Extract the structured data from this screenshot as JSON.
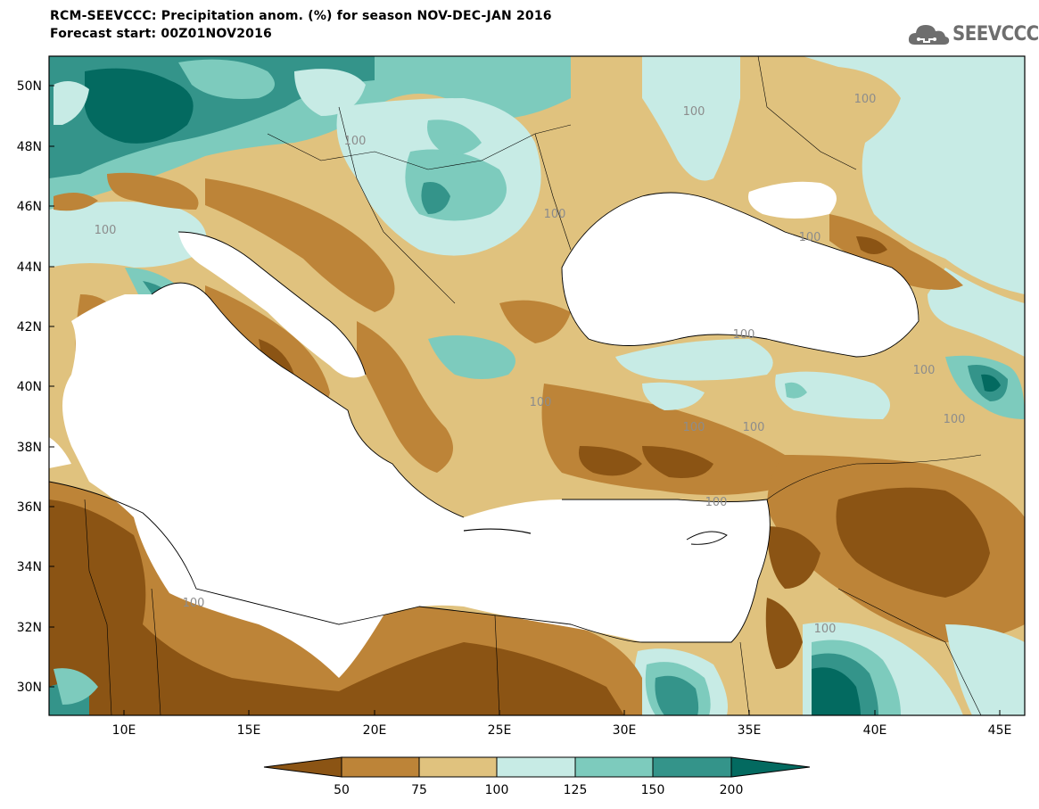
{
  "header": {
    "title_line1": "RCM-SEEVCCC: Precipitation anom. (%) for season NOV-DEC-JAN 2016",
    "title_line2": "Forecast start: 00Z01NOV2016",
    "logo_text": "SEEVCCC"
  },
  "map": {
    "lon_range": [
      7,
      46
    ],
    "lat_range": [
      29,
      51
    ],
    "lat_labels": [
      "50N",
      "48N",
      "46N",
      "44N",
      "42N",
      "40N",
      "38N",
      "36N",
      "34N",
      "32N",
      "30N"
    ],
    "lon_labels": [
      "10E",
      "15E",
      "20E",
      "25E",
      "30E",
      "35E",
      "40E",
      "45E"
    ],
    "contour_labels": [
      "100",
      "100",
      "100",
      "100",
      "100",
      "100",
      "100",
      "100",
      "100",
      "100",
      "100",
      "100",
      "100",
      "100",
      "100"
    ]
  },
  "colorbar": {
    "boundaries": [
      "50",
      "75",
      "100",
      "125",
      "150",
      "200"
    ],
    "colors": [
      "#8b5414",
      "#bd8438",
      "#e0c27e",
      "#c7ebe5",
      "#7dcbbd",
      "#34948a",
      "#036a60"
    ]
  }
}
